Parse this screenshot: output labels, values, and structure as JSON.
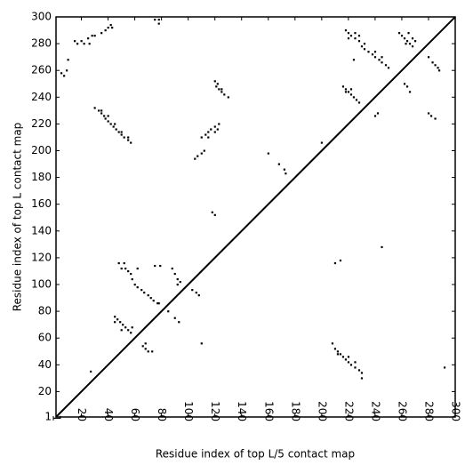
{
  "chart_data": {
    "type": "scatter",
    "xlabel": "Residue index of top L/5 contact map",
    "ylabel": "Residue index of top L contact map",
    "xlim": [
      1,
      300
    ],
    "ylim": [
      1,
      300
    ],
    "xticks": [
      1,
      20,
      40,
      60,
      80,
      100,
      120,
      140,
      160,
      180,
      200,
      220,
      240,
      260,
      280,
      300
    ],
    "yticks": [
      1,
      20,
      40,
      60,
      80,
      100,
      120,
      140,
      160,
      180,
      200,
      220,
      240,
      260,
      280,
      300
    ],
    "diagonal": true,
    "series": [
      {
        "color": "#000000",
        "x": [
          15,
          17,
          20,
          22,
          25,
          26,
          28,
          30,
          35,
          38,
          40,
          42,
          43,
          10,
          5,
          7,
          9,
          75,
          78,
          78,
          30,
          33,
          35,
          37,
          38,
          40,
          42,
          44,
          46,
          48,
          50,
          52,
          55,
          57,
          35,
          40,
          45,
          50,
          55,
          105,
          107,
          110,
          112,
          110,
          113,
          115,
          117,
          120,
          123,
          115,
          120,
          122,
          120,
          121,
          123,
          125,
          127,
          130,
          122,
          125,
          120,
          118,
          160,
          168,
          172,
          173,
          200,
          218,
          220,
          222,
          225,
          228,
          230,
          232,
          235,
          238,
          240,
          243,
          245,
          248,
          250,
          220,
          225,
          228,
          232,
          240,
          245,
          224,
          216,
          218,
          220,
          222,
          224,
          226,
          228,
          222,
          218,
          240,
          242,
          258,
          260,
          262,
          264,
          266,
          268,
          270,
          265,
          268,
          263,
          262,
          264,
          266,
          280,
          283,
          285,
          287,
          288,
          280,
          282,
          285
        ],
        "y": [
          282,
          280,
          282,
          280,
          284,
          280,
          286,
          286,
          288,
          290,
          292,
          294,
          292,
          268,
          258,
          256,
          260,
          298,
          298,
          295,
          232,
          230,
          228,
          226,
          224,
          222,
          220,
          218,
          216,
          214,
          212,
          210,
          208,
          206,
          230,
          226,
          220,
          214,
          210,
          194,
          196,
          198,
          200,
          210,
          212,
          214,
          216,
          218,
          220,
          210,
          214,
          216,
          252,
          248,
          246,
          244,
          242,
          240,
          250,
          246,
          152,
          154,
          198,
          190,
          186,
          183,
          206,
          290,
          288,
          286,
          284,
          282,
          278,
          276,
          274,
          272,
          270,
          268,
          266,
          264,
          262,
          284,
          288,
          286,
          280,
          274,
          270,
          268,
          248,
          246,
          244,
          242,
          240,
          238,
          236,
          246,
          244,
          226,
          228,
          288,
          286,
          284,
          282,
          280,
          278,
          282,
          288,
          284,
          280,
          250,
          248,
          244,
          270,
          266,
          264,
          262,
          260,
          228,
          226,
          224
        ]
      },
      {
        "color": "#000000",
        "x": [
          48,
          52,
          50,
          55,
          53,
          57,
          58,
          60,
          62,
          65,
          67,
          70,
          72,
          74,
          77,
          78,
          75,
          79,
          62,
          88,
          90,
          92,
          94,
          92,
          103,
          106,
          108,
          45,
          47,
          49,
          51,
          53,
          55,
          50,
          45,
          57,
          58,
          68,
          68,
          70,
          73,
          66,
          85,
          90,
          93,
          110,
          210,
          214,
          208,
          210,
          212,
          214,
          216,
          218,
          220,
          222,
          225,
          228,
          230,
          230,
          212,
          220,
          225,
          245,
          27,
          292
        ],
        "y": [
          116,
          116,
          112,
          110,
          112,
          108,
          104,
          100,
          98,
          96,
          94,
          92,
          90,
          88,
          86,
          86,
          114,
          114,
          112,
          112,
          108,
          104,
          102,
          100,
          96,
          94,
          92,
          76,
          74,
          72,
          70,
          68,
          66,
          66,
          72,
          64,
          68,
          56,
          52,
          50,
          50,
          54,
          80,
          75,
          72,
          56,
          116,
          118,
          56,
          52,
          50,
          48,
          46,
          44,
          42,
          40,
          38,
          36,
          34,
          30,
          48,
          46,
          42,
          128,
          35,
          38
        ]
      }
    ]
  }
}
